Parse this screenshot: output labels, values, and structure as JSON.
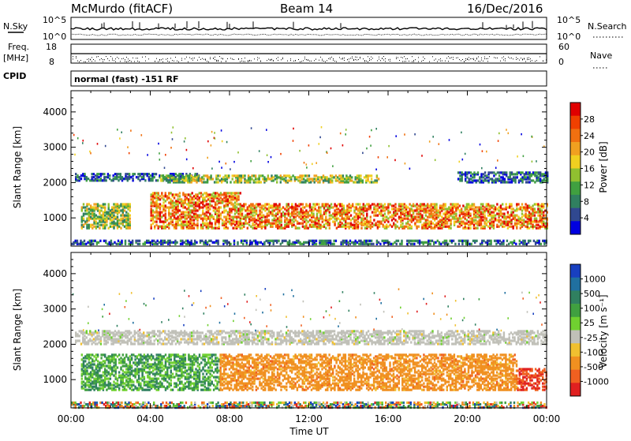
{
  "header": {
    "station": "McMurdo (fitACF)",
    "beam": "Beam 14",
    "date": "16/Dec/2016"
  },
  "noise_panel": {
    "left_label": "N.Sky",
    "right_label": "N.Search",
    "left_ticks": [
      "10^5",
      "10^0"
    ],
    "right_ticks": [
      "10^5",
      "10^0"
    ]
  },
  "freq_panel": {
    "left_label": "Freq.",
    "left_unit": "[MHz]",
    "right_label": "Nave",
    "left_ticks": [
      "18",
      "8"
    ],
    "right_ticks": [
      "60",
      "0"
    ]
  },
  "cpid": {
    "label": "CPID",
    "text": "normal (fast) -151 RF"
  },
  "chart_data": [
    {
      "type": "heatmap",
      "name": "power",
      "ylabel": "Slant Range [km]",
      "xlabel": "",
      "ylim": [
        200,
        4600
      ],
      "y_ticks": [
        "4000",
        "3000",
        "2000",
        "1000"
      ],
      "colorbar": {
        "label": "Power [dB]",
        "ticks": [
          "28",
          "24",
          "20",
          "16",
          "12",
          "8",
          "4"
        ],
        "colors": [
          "#e00000",
          "#f04000",
          "#f07010",
          "#f0a020",
          "#f0d020",
          "#90c030",
          "#40a040",
          "#308060",
          "#304890",
          "#0000e0"
        ]
      },
      "x_ticks": [
        "00:00",
        "04:00",
        "08:00",
        "12:00",
        "16:00",
        "20:00",
        "00:00"
      ],
      "bands": [
        {
          "t0": 0.2,
          "t1": 6.5,
          "range": [
            2050,
            2250
          ],
          "level": "low"
        },
        {
          "t0": 4.5,
          "t1": 15.5,
          "range": [
            2000,
            2200
          ],
          "level": "mid"
        },
        {
          "t0": 19.5,
          "t1": 24,
          "range": [
            2000,
            2300
          ],
          "level": "low"
        },
        {
          "t0": 0.5,
          "t1": 3.0,
          "range": [
            700,
            1400
          ],
          "level": "mid"
        },
        {
          "t0": 4.0,
          "t1": 8.5,
          "range": [
            700,
            1700
          ],
          "level": "high"
        },
        {
          "t0": 8.5,
          "t1": 24,
          "range": [
            700,
            1400
          ],
          "level": "high"
        },
        {
          "t0": 0,
          "t1": 24,
          "range": [
            250,
            350
          ],
          "level": "low"
        }
      ]
    },
    {
      "type": "heatmap",
      "name": "velocity",
      "ylabel": "Slant Range [km]",
      "xlabel": "Time UT",
      "ylim": [
        200,
        4600
      ],
      "y_ticks": [
        "4000",
        "3000",
        "2000",
        "1000"
      ],
      "colorbar": {
        "label": "Velocity [m s⁻¹]",
        "ticks": [
          "1000",
          "500",
          "100",
          "25",
          "-25",
          "-100",
          "-500",
          "-1000"
        ],
        "colors": [
          "#1840c0",
          "#2070a0",
          "#308060",
          "#40a040",
          "#70d030",
          "#c0c0b8",
          "#f0c030",
          "#f09020",
          "#f06020",
          "#e02020"
        ]
      },
      "x_ticks": [
        "00:00",
        "04:00",
        "08:00",
        "12:00",
        "16:00",
        "20:00",
        "00:00"
      ],
      "bands": [
        {
          "t0": 0.2,
          "t1": 24,
          "range": [
            2000,
            2400
          ],
          "level": "gray"
        },
        {
          "t0": 0.5,
          "t1": 7.5,
          "range": [
            700,
            1700
          ],
          "level": "green"
        },
        {
          "t0": 7.5,
          "t1": 22.5,
          "range": [
            700,
            1700
          ],
          "level": "orange"
        },
        {
          "t0": 22.5,
          "t1": 24,
          "range": [
            700,
            1300
          ],
          "level": "red"
        },
        {
          "t0": 0,
          "t1": 24,
          "range": [
            200,
            350
          ],
          "level": "mixed"
        }
      ]
    }
  ]
}
